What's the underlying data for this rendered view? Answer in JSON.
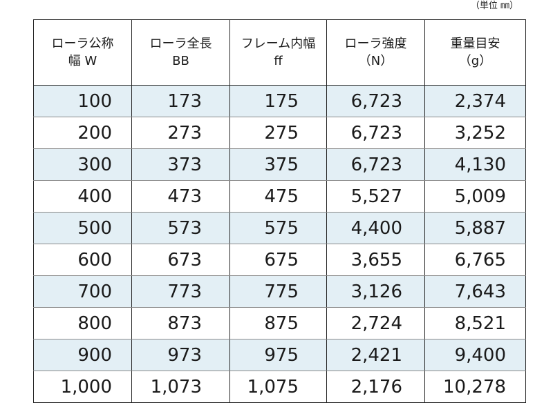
{
  "unit_note": "（単位 ㎜）",
  "headers": [
    {
      "line1": "ローラ公称",
      "line2": "幅 W"
    },
    {
      "line1": "ローラ全長",
      "line2": "BB"
    },
    {
      "line1": "フレーム内幅",
      "line2": "ff"
    },
    {
      "line1": "ローラ強度",
      "line2": "（N）"
    },
    {
      "line1": "重量目安",
      "line2": "（g）"
    }
  ],
  "rows": [
    [
      "100",
      "173",
      "175",
      "6,723",
      "2,374"
    ],
    [
      "200",
      "273",
      "275",
      "6,723",
      "3,252"
    ],
    [
      "300",
      "373",
      "375",
      "6,723",
      "4,130"
    ],
    [
      "400",
      "473",
      "475",
      "5,527",
      "5,009"
    ],
    [
      "500",
      "573",
      "575",
      "4,400",
      "5,887"
    ],
    [
      "600",
      "673",
      "675",
      "3,655",
      "6,765"
    ],
    [
      "700",
      "773",
      "775",
      "3,126",
      "7,643"
    ],
    [
      "800",
      "873",
      "875",
      "2,724",
      "8,521"
    ],
    [
      "900",
      "973",
      "975",
      "2,421",
      "9,400"
    ],
    [
      "1,000",
      "1,073",
      "1,075",
      "2,176",
      "10,278"
    ]
  ],
  "colors": {
    "row_shade": "#e3eff5",
    "border": "#222222"
  }
}
